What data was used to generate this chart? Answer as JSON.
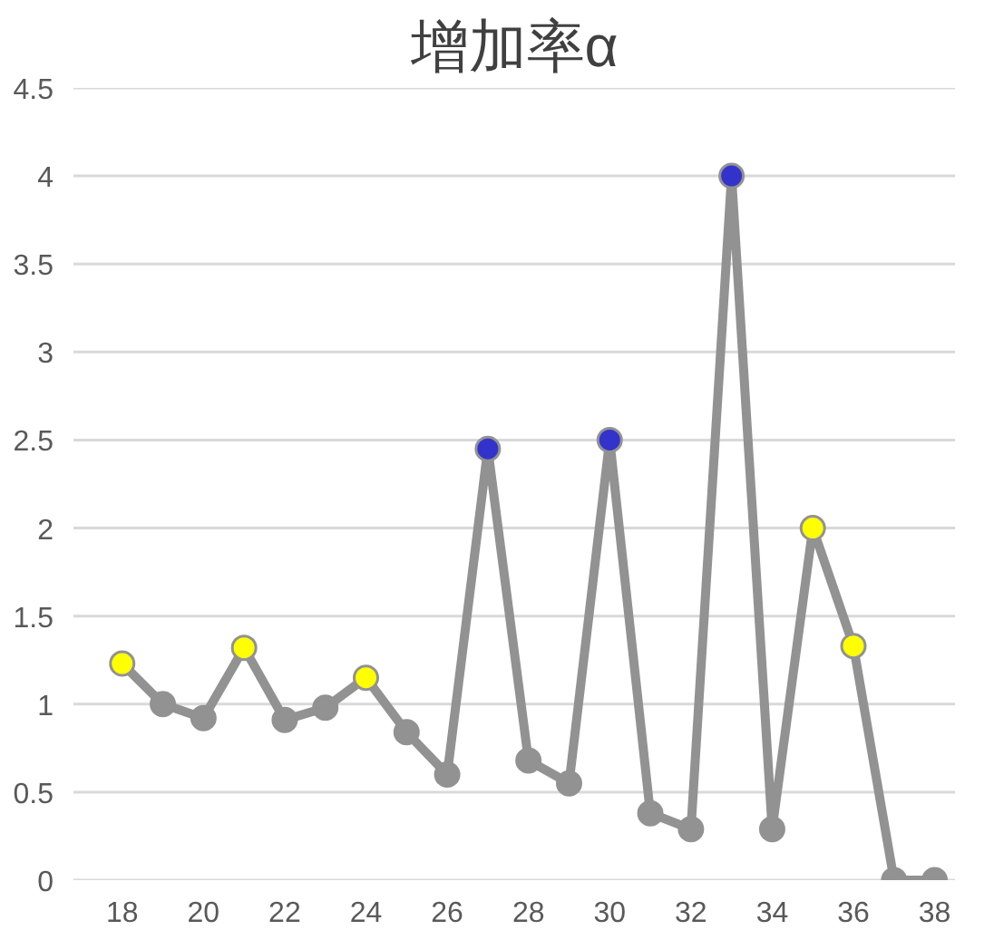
{
  "chart_data": {
    "type": "line",
    "title": "增加率α",
    "x": [
      18,
      19,
      20,
      21,
      22,
      23,
      24,
      25,
      26,
      27,
      28,
      29,
      30,
      31,
      32,
      33,
      34,
      35,
      36,
      37,
      38
    ],
    "series": [
      {
        "color": "#929292",
        "values": [
          1.23,
          1.0,
          0.92,
          1.32,
          0.91,
          0.98,
          1.15,
          0.84,
          0.6,
          2.45,
          0.68,
          0.55,
          2.5,
          0.38,
          0.29,
          4.0,
          0.29,
          2.0,
          1.33,
          0,
          0
        ],
        "colors": [
          "#ffff00",
          "#929292",
          "#929292",
          "#ffff00",
          "#929292",
          "#929292",
          "#ffff00",
          "#929292",
          "#929292",
          "#3333cc",
          "#929292",
          "#929292",
          "#3333cc",
          "#929292",
          "#929292",
          "#3333cc",
          "#929292",
          "#ffff00",
          "#ffff00",
          "#929292",
          "#929292"
        ]
      }
    ],
    "xlim": [
      16.8,
      38.5
    ],
    "xticks": [
      18,
      20,
      22,
      24,
      26,
      28,
      30,
      32,
      34,
      36,
      38
    ],
    "ylim": [
      0,
      4.5
    ],
    "yticks": [
      0,
      0.5,
      1,
      1.5,
      2,
      2.5,
      3,
      3.5,
      4,
      4.5
    ],
    "grid": "y",
    "marker": "circle",
    "line_style": "solid"
  }
}
